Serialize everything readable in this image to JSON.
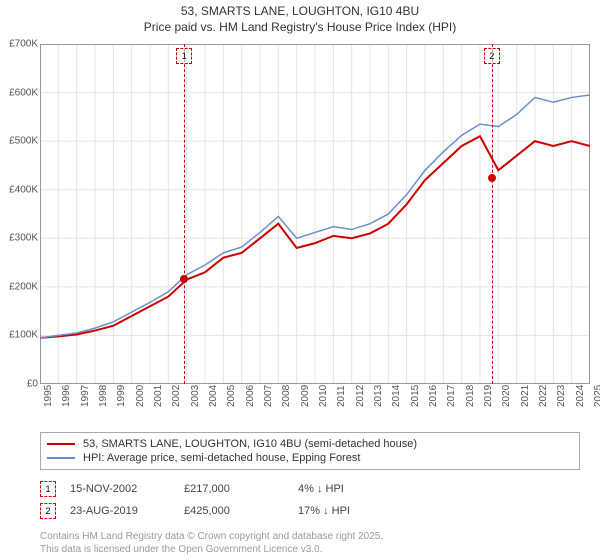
{
  "title_line1": "53, SMARTS LANE, LOUGHTON, IG10 4BU",
  "title_line2": "Price paid vs. HM Land Registry's House Price Index (HPI)",
  "chart": {
    "type": "line",
    "background_color": "#ffffff",
    "grid_color": "#e4e4e4",
    "ylim": [
      0,
      700000
    ],
    "ytick_step": 100000,
    "yticklabels": [
      "£0",
      "£100K",
      "£200K",
      "£300K",
      "£400K",
      "£500K",
      "£600K",
      "£700K"
    ],
    "x_years": [
      1995,
      1996,
      1997,
      1998,
      1999,
      2000,
      2001,
      2002,
      2003,
      2004,
      2005,
      2006,
      2007,
      2008,
      2009,
      2010,
      2011,
      2012,
      2013,
      2014,
      2015,
      2016,
      2017,
      2018,
      2019,
      2020,
      2021,
      2022,
      2023,
      2024,
      2025
    ],
    "series": [
      {
        "name": "price_paid",
        "color": "#cc0000",
        "width": 2,
        "values": [
          95,
          98,
          102,
          110,
          120,
          140,
          160,
          180,
          215,
          230,
          260,
          270,
          300,
          330,
          280,
          290,
          305,
          300,
          310,
          330,
          370,
          420,
          455,
          490,
          510,
          440,
          470,
          500,
          490,
          500,
          490
        ]
      },
      {
        "name": "hpi",
        "color": "#6b8fc9",
        "width": 1.5,
        "values": [
          95,
          100,
          105,
          115,
          128,
          148,
          168,
          190,
          225,
          245,
          270,
          282,
          312,
          345,
          300,
          312,
          324,
          318,
          330,
          350,
          390,
          440,
          478,
          512,
          535,
          530,
          555,
          590,
          580,
          590,
          595
        ]
      }
    ],
    "sales_markers": [
      {
        "n": "1",
        "year": 2002.87,
        "price": 217000,
        "color": "#cc0000"
      },
      {
        "n": "2",
        "year": 2019.65,
        "price": 425000,
        "color": "#cc0000"
      }
    ],
    "label_fontsize": 10
  },
  "legend": {
    "series1": "53, SMARTS LANE, LOUGHTON, IG10 4BU (semi-detached house)",
    "series2": "HPI: Average price, semi-detached house, Epping Forest",
    "color1": "#cc0000",
    "color2": "#6b8fc9"
  },
  "sales": [
    {
      "n": "1",
      "date": "15-NOV-2002",
      "price": "£217,000",
      "delta": "4% ↓ HPI",
      "box_color": "#cc0000"
    },
    {
      "n": "2",
      "date": "23-AUG-2019",
      "price": "£425,000",
      "delta": "17% ↓ HPI",
      "box_color": "#cc0000"
    }
  ],
  "footer_line1": "Contains HM Land Registry data © Crown copyright and database right 2025.",
  "footer_line2": "This data is licensed under the Open Government Licence v3.0."
}
